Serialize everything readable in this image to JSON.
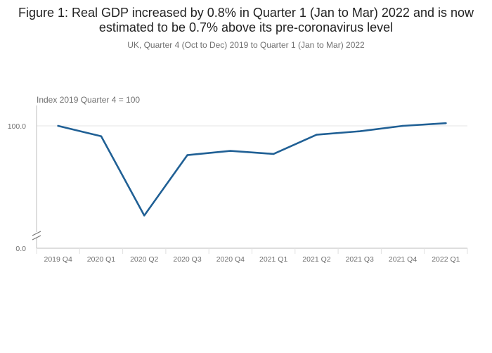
{
  "chart_data": {
    "type": "line",
    "title": "Figure 1: Real GDP increased by 0.8% in Quarter 1 (Jan to Mar) 2022 and is now estimated to be 0.7% above its pre-coronavirus level",
    "subtitle": "UK, Quarter 4 (Oct to Dec) 2019 to Quarter 1 (Jan to Mar) 2022",
    "ylabel": "Index 2019 Quarter 4 = 100",
    "xlabel": "",
    "y_tick_labels": [
      "100.0",
      "0.0"
    ],
    "axis_break": "between 0.0 and 100.0",
    "categories": [
      "2019 Q4",
      "2020 Q1",
      "2020 Q2",
      "2020 Q3",
      "2020 Q4",
      "2021 Q1",
      "2021 Q2",
      "2021 Q3",
      "2021 Q4",
      "2022 Q1"
    ],
    "series": [
      {
        "name": "Real GDP",
        "values": [
          100.0,
          97.3,
          76.7,
          92.4,
          93.5,
          92.7,
          97.7,
          98.6,
          100.0,
          100.7
        ],
        "color": "#206095"
      }
    ],
    "grid": true
  }
}
